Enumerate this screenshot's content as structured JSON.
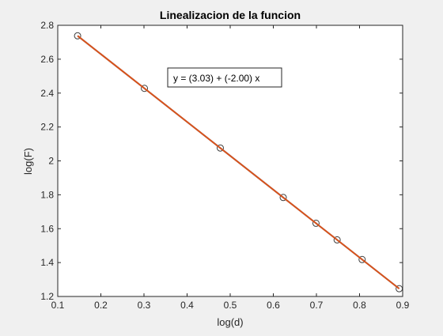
{
  "chart_data": {
    "type": "line",
    "title": "Linealizacion de la funcion",
    "xlabel": "log(d)",
    "ylabel": "log(F)",
    "xlim": [
      0.1,
      0.9
    ],
    "ylim": [
      1.2,
      2.8
    ],
    "xticks": [
      0.1,
      0.2,
      0.3,
      0.4,
      0.5,
      0.6,
      0.7,
      0.8,
      0.9
    ],
    "xtick_labels": [
      "0.1",
      "0.2",
      "0.3",
      "0.4",
      "0.5",
      "0.6",
      "0.7",
      "0.8",
      "0.9"
    ],
    "yticks": [
      1.2,
      1.4,
      1.6,
      1.8,
      2.0,
      2.2,
      2.4,
      2.6,
      2.8
    ],
    "ytick_labels": [
      "1.2",
      "1.4",
      "1.6",
      "1.8",
      "2",
      "2.2",
      "2.4",
      "2.6",
      "2.8"
    ],
    "grid": false,
    "series": [
      {
        "kind": "line",
        "color": "#4472c4",
        "x": [
          0.146,
          0.301,
          0.477,
          0.623,
          0.699,
          0.748,
          0.806,
          0.892
        ],
        "y": [
          2.738,
          2.428,
          2.076,
          1.784,
          1.632,
          1.534,
          1.418,
          1.246
        ]
      },
      {
        "kind": "markers",
        "marker": "circle",
        "color": "#3c3c3c",
        "x": [
          0.146,
          0.301,
          0.477,
          0.623,
          0.699,
          0.748,
          0.806,
          0.892
        ],
        "y": [
          2.738,
          2.428,
          2.076,
          1.784,
          1.632,
          1.534,
          1.418,
          1.246
        ]
      },
      {
        "kind": "line",
        "color": "#d95319",
        "x": [
          0.146,
          0.892
        ],
        "y": [
          2.738,
          1.246
        ]
      }
    ],
    "annotation": {
      "text": "y = (3.03) + (-2.00) x"
    }
  }
}
